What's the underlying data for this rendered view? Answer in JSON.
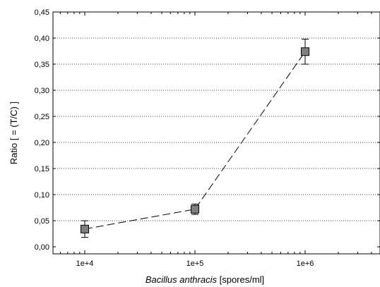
{
  "chart_data": {
    "type": "scatter",
    "x_scale": "log",
    "x_ticks": [
      "1e+4",
      "1e+5",
      "1e+6"
    ],
    "y_ticks": [
      "0,00",
      "0,05",
      "0,10",
      "0,15",
      "0,20",
      "0,25",
      "0,30",
      "0,35",
      "0,40",
      "0,45"
    ],
    "ylim": [
      -0.005,
      0.45
    ],
    "xlim": [
      4000,
      5000000
    ],
    "grid": "horizontal-dotted",
    "ylabel": "Ratio [ = (T/C) ]",
    "xlabel_italic": "Bacillus anthracis",
    "xlabel_rest": " [spores/ml]",
    "series": [
      {
        "marker": "square",
        "line_style": "dashed",
        "color": "#7f7f7f",
        "points": [
          {
            "x": 10000,
            "y": 0.034,
            "err": 0.016
          },
          {
            "x": 100000,
            "y": 0.072,
            "err": 0.01
          },
          {
            "x": 1000000,
            "y": 0.374,
            "err": 0.024
          }
        ]
      }
    ]
  }
}
